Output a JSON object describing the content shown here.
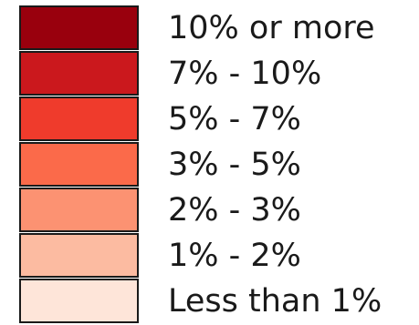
{
  "chart_data": {
    "type": "legend",
    "entries": [
      {
        "label": "10% or more",
        "color": "#99000d"
      },
      {
        "label": "7% - 10%",
        "color": "#cb181d"
      },
      {
        "label": "5% - 7%",
        "color": "#ef3b2c"
      },
      {
        "label": "3% - 5%",
        "color": "#fb6a4a"
      },
      {
        "label": "2% - 3%",
        "color": "#fc9272"
      },
      {
        "label": "1% - 2%",
        "color": "#fcbba1"
      },
      {
        "label": "Less than 1%",
        "color": "#fee5d9"
      }
    ]
  }
}
